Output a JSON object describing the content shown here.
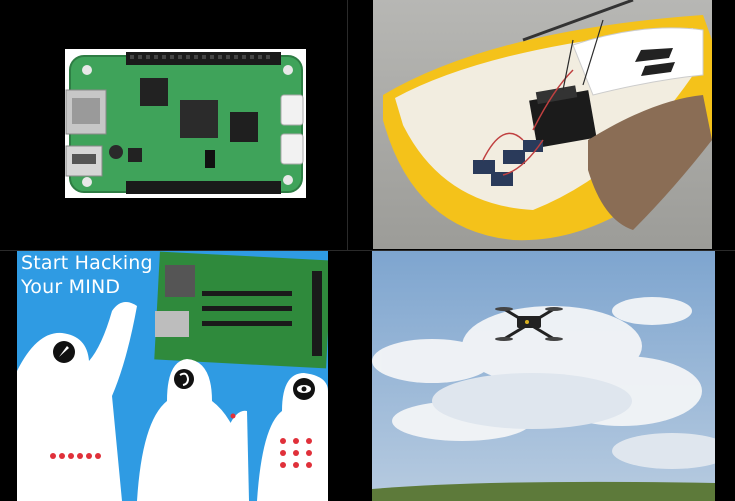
{
  "tiles": {
    "board": {
      "label": "green single-board computer"
    },
    "boat": {
      "label": "model sailboat with electronics"
    },
    "hacking": {
      "title_line1": "Start Hacking",
      "title_line2": "Your MIND"
    },
    "drone": {
      "label": "quadcopter drone flying"
    }
  },
  "colors": {
    "board_green": "#3fa35a",
    "hack_blue": "#2f9be3",
    "sky_blue": "#8fb4d8",
    "dot_red": "#e0303a"
  }
}
